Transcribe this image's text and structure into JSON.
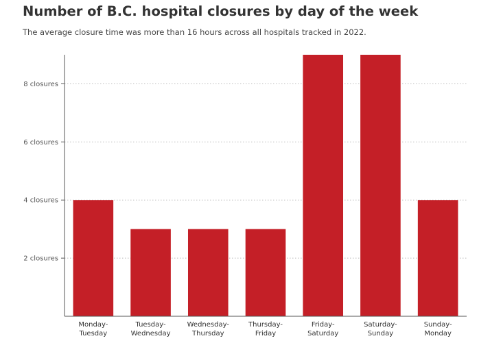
{
  "title": "Number of B.C. hospital closures by day of the week",
  "subtitle": "The average closure time was more than 16 hours across all hospitals tracked in 2022.",
  "colors": {
    "bar": "#c41f27",
    "grid": "#bbbbbb",
    "axis": "#555555"
  },
  "chart_data": {
    "type": "bar",
    "categories": [
      [
        "Monday-",
        "Tuesday"
      ],
      [
        "Tuesday-",
        "Wednesday"
      ],
      [
        "Wednesday-",
        "Thursday"
      ],
      [
        "Thursday-",
        "Friday"
      ],
      [
        "Friday-",
        "Saturday"
      ],
      [
        "Saturday-",
        "Sunday"
      ],
      [
        "Sunday-",
        "Monday"
      ]
    ],
    "values": [
      4,
      3,
      3,
      3,
      9,
      9,
      4
    ],
    "yticks": [
      2,
      4,
      6,
      8
    ],
    "ytick_labels": [
      "2 closures",
      "4 closures",
      "6 closures",
      "8 closures"
    ],
    "ylim": [
      0,
      9
    ],
    "grid": "horizontal dotted"
  }
}
